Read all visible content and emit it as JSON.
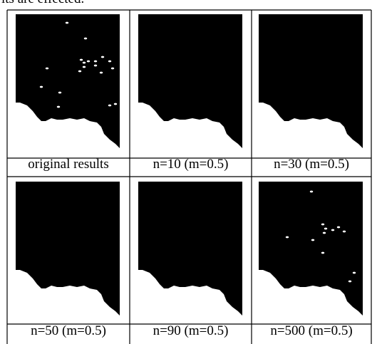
{
  "text_above": "lts are effected.",
  "captions": [
    "original results",
    "n=10 (m=0.5)",
    "n=30 (m=0.5)",
    "n=50 (m=0.5)",
    "n=90 (m=0.5)",
    "n=500 (m=0.5)"
  ]
}
